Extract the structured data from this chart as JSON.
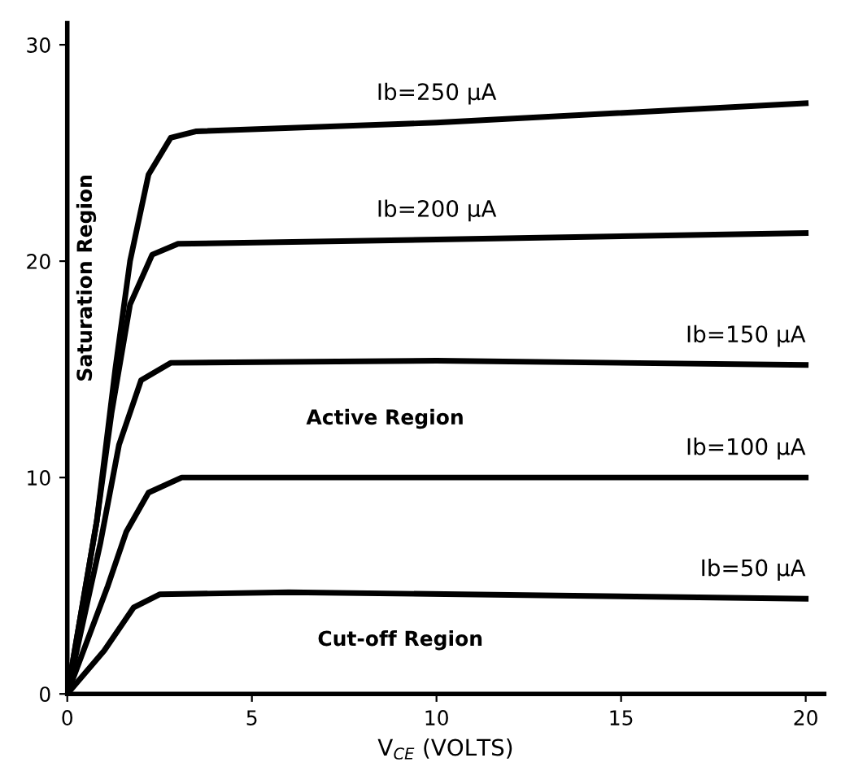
{
  "chart_data": {
    "type": "line",
    "xlabel": "V$_{CE}$ (VOLTS)",
    "xlim": [
      0,
      20.5
    ],
    "ylim": [
      0,
      31
    ],
    "xticks": [
      0,
      5,
      10,
      15,
      20
    ],
    "yticks": [
      0,
      10,
      20,
      30
    ],
    "grid": false,
    "legend": false,
    "marker": "none",
    "line_style": "solid",
    "series": [
      {
        "name": "Ib=250 µA",
        "color": "#000000",
        "x": [
          0,
          0.8,
          1.3,
          1.7,
          2.2,
          2.8,
          3.5,
          10,
          20
        ],
        "values": [
          0,
          8,
          15,
          20,
          24,
          25.7,
          26,
          26.4,
          27.3
        ]
      },
      {
        "name": "Ib=200 µA",
        "color": "#000000",
        "x": [
          0,
          0.8,
          1.2,
          1.7,
          2.3,
          3,
          10,
          20
        ],
        "values": [
          0,
          8,
          13,
          18,
          20.3,
          20.8,
          21,
          21.3
        ]
      },
      {
        "name": "Ib=150 µA",
        "color": "#000000",
        "x": [
          0,
          0.9,
          1.4,
          2,
          2.8,
          10,
          20
        ],
        "values": [
          0,
          7,
          11.5,
          14.5,
          15.3,
          15.4,
          15.2
        ]
      },
      {
        "name": "Ib=100 µA",
        "color": "#000000",
        "x": [
          0,
          1.1,
          1.6,
          2.2,
          3.1,
          20
        ],
        "values": [
          0,
          5,
          7.5,
          9.3,
          10,
          10
        ]
      },
      {
        "name": "Ib=50 µA",
        "color": "#000000",
        "x": [
          0,
          1,
          1.8,
          2.5,
          6,
          20
        ],
        "values": [
          0,
          2,
          4,
          4.6,
          4.7,
          4.4
        ]
      }
    ],
    "annotations": [
      "Saturation Region",
      "Active Region",
      "Cut-off Region"
    ]
  }
}
